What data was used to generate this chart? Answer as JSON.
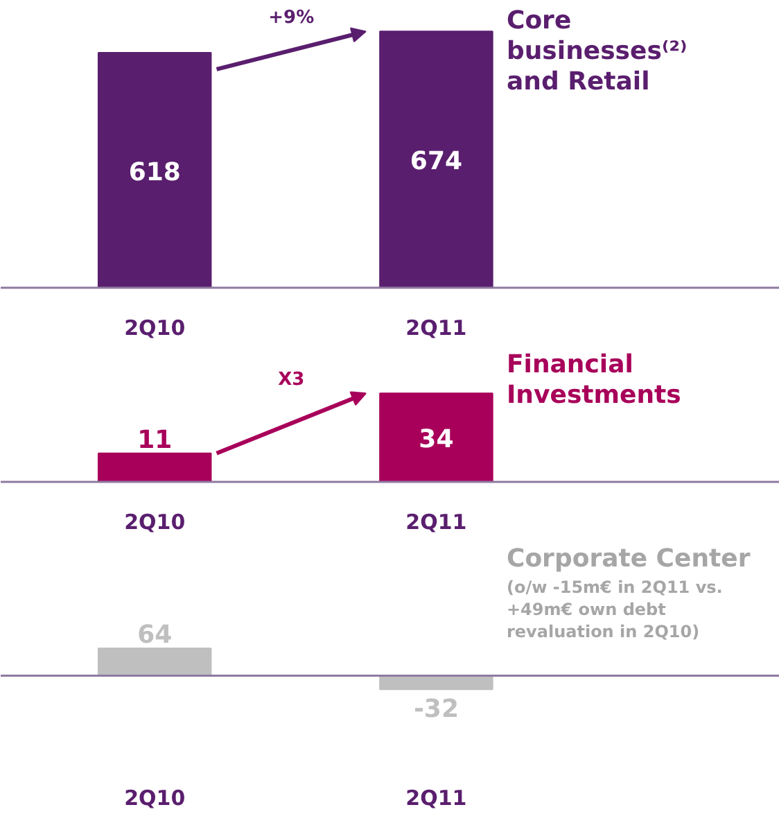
{
  "chart_data": [
    {
      "type": "bar",
      "title": "Core businesses⁽²⁾ and Retail",
      "categories": [
        "2Q10",
        "2Q11"
      ],
      "values": [
        618,
        674
      ],
      "color": "#5a1e6e",
      "data_labels": true,
      "annotations": [
        "+9%"
      ]
    },
    {
      "type": "bar",
      "title": "Financial Investments",
      "categories": [
        "2Q10",
        "2Q11"
      ],
      "values": [
        11,
        34
      ],
      "color": "#a8005a",
      "data_labels": true,
      "annotations": [
        "X3"
      ]
    },
    {
      "type": "bar",
      "title": "Corporate Center",
      "subtitle": "(o/w -15m€ in 2Q11 vs. +49m€ own debt revaluation in 2Q10)",
      "categories": [
        "2Q10",
        "2Q11"
      ],
      "values": [
        64,
        -32
      ],
      "color": "#bfbfbf",
      "data_labels": true,
      "ref_lines": [
        {
          "axis": "y",
          "value": 0,
          "color": "#8e7aa0"
        }
      ]
    }
  ]
}
